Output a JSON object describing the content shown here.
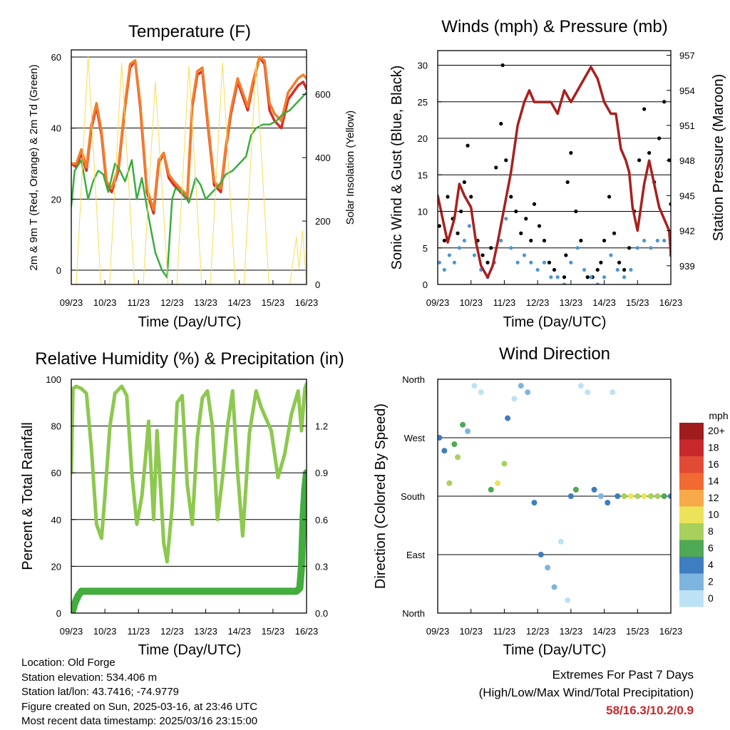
{
  "info": {
    "location": "Location: Old Forge",
    "elevation": "Station elevation: 534.406 m",
    "latlon": "Station lat/lon: 43.7416; -74.9779",
    "created": "Figure created on Sun, 2025-03-16, at 23:46 UTC",
    "recent": "Most recent data timestamp: 2025/03/16 23:15:00"
  },
  "extremes": {
    "heading": "Extremes For Past 7 Days",
    "subheading": "(High/Low/Max Wind/Total Precipitation)",
    "values": "58/16.3/10.2/0.9"
  },
  "chart_data": [
    {
      "type": "line",
      "title": "Temperature (F)",
      "xlabel": "Time (Day/UTC)",
      "ylabel": "2m & 9m T (Red, Orange) & 2m Td (Green)",
      "ylabel_right": "Solar Insolation (Yellow)",
      "xlim": [
        9,
        16
      ],
      "x_ticks": [
        "09/23",
        "10/23",
        "11/23",
        "12/23",
        "13/23",
        "14/23",
        "15/23",
        "16/23"
      ],
      "ylim": [
        -4,
        62
      ],
      "y_ticks": [
        0,
        20,
        40,
        60
      ],
      "ylim_right": [
        0,
        740
      ],
      "y_ticks_right": [
        0,
        200,
        400,
        600
      ],
      "grid": "horizontal",
      "series": [
        {
          "color": "#d62f27",
          "x": [
            9.0,
            9.15,
            9.3,
            9.45,
            9.6,
            9.75,
            9.9,
            10.05,
            10.2,
            10.4,
            10.6,
            10.75,
            10.9,
            11.05,
            11.25,
            11.45,
            11.6,
            11.75,
            11.9,
            12.05,
            12.25,
            12.45,
            12.6,
            12.75,
            12.9,
            13.05,
            13.25,
            13.45,
            13.6,
            13.75,
            13.95,
            14.1,
            14.25,
            14.4,
            14.6,
            14.75,
            14.9,
            15.05,
            15.25,
            15.45,
            15.6,
            15.75,
            15.9,
            16.0
          ],
          "y": [
            30,
            29,
            33,
            28,
            40,
            46,
            38,
            24,
            22,
            28,
            46,
            57,
            59,
            46,
            22,
            16,
            30,
            33,
            26,
            24,
            22,
            20,
            46,
            55,
            56,
            42,
            24,
            22,
            34,
            44,
            53,
            49,
            45,
            52,
            60,
            58,
            45,
            42,
            40,
            48,
            50,
            52,
            53,
            51
          ]
        },
        {
          "color": "#f37e2b",
          "x": [
            9.0,
            9.15,
            9.3,
            9.45,
            9.6,
            9.75,
            9.9,
            10.05,
            10.2,
            10.4,
            10.6,
            10.75,
            10.9,
            11.05,
            11.25,
            11.45,
            11.6,
            11.75,
            11.9,
            12.05,
            12.25,
            12.45,
            12.6,
            12.75,
            12.9,
            13.05,
            13.25,
            13.45,
            13.6,
            13.75,
            13.95,
            14.1,
            14.25,
            14.4,
            14.6,
            14.75,
            14.9,
            15.05,
            15.25,
            15.45,
            15.6,
            15.75,
            15.9,
            16.0
          ],
          "y": [
            30,
            30,
            34,
            29,
            41,
            47,
            39,
            25,
            23,
            29,
            47,
            58,
            59,
            47,
            23,
            17,
            31,
            33,
            27,
            25,
            23,
            21,
            47,
            56,
            57,
            43,
            25,
            23,
            35,
            45,
            54,
            50,
            46,
            53,
            60,
            59,
            47,
            44,
            42,
            50,
            52,
            54,
            55,
            54
          ]
        },
        {
          "color": "#3aad3f",
          "x": [
            9.0,
            9.1,
            9.3,
            9.5,
            9.65,
            9.8,
            9.95,
            10.1,
            10.3,
            10.45,
            10.6,
            10.8,
            10.95,
            11.1,
            11.3,
            11.5,
            11.7,
            11.85,
            12.0,
            12.1,
            12.3,
            12.5,
            12.7,
            12.85,
            13.0,
            13.2,
            13.4,
            13.6,
            13.8,
            14.0,
            14.2,
            14.35,
            14.5,
            14.7,
            14.9,
            15.1,
            15.3,
            15.5,
            15.7,
            15.9,
            16.0
          ],
          "y": [
            18,
            28,
            31,
            20,
            25,
            28,
            27,
            22,
            30,
            28,
            25,
            31,
            20,
            26,
            15,
            5,
            0,
            -2,
            20,
            23,
            22,
            19,
            26,
            24,
            20,
            22,
            24,
            27,
            28,
            30,
            32,
            38,
            40,
            41,
            41,
            42,
            44,
            45,
            47,
            49,
            50
          ]
        },
        {
          "color": "#f5dd55",
          "axis": "right",
          "x": [
            9.15,
            9.5,
            9.88,
            10.14,
            10.5,
            10.88,
            11.14,
            11.5,
            11.88,
            12.14,
            12.5,
            12.88,
            13.14,
            13.5,
            13.88,
            14.14,
            14.5,
            14.88,
            15.14,
            15.5,
            15.7,
            15.78,
            15.88,
            15.93,
            16.0
          ],
          "y": [
            0,
            720,
            0,
            0,
            700,
            0,
            0,
            640,
            0,
            0,
            690,
            0,
            0,
            700,
            0,
            0,
            700,
            0,
            0,
            0,
            150,
            50,
            170,
            100,
            0
          ]
        }
      ]
    },
    {
      "type": "scatter",
      "title": "Winds (mph) & Pressure (mb)",
      "xlabel": "Time (Day/UTC)",
      "ylabel": "Sonic Wind & Gust (Blue, Black)",
      "ylabel_right": "Station Pressure (Maroon)",
      "xlim": [
        9,
        16
      ],
      "x_ticks": [
        "09/23",
        "10/23",
        "11/23",
        "12/23",
        "13/23",
        "14/23",
        "15/23",
        "16/23"
      ],
      "ylim": [
        0,
        32
      ],
      "y_ticks": [
        0,
        5,
        10,
        15,
        20,
        25,
        30
      ],
      "ylim_right": [
        937.4,
        957.4
      ],
      "y_ticks_right": [
        939,
        942,
        945,
        948,
        951,
        954,
        957
      ],
      "grid": "horizontal",
      "series": [
        {
          "color": "#000000",
          "marker": "dot",
          "x": [
            9.05,
            9.2,
            9.3,
            9.45,
            9.6,
            9.7,
            9.8,
            9.9,
            10.0,
            10.2,
            10.35,
            10.5,
            10.6,
            10.75,
            10.9,
            10.95,
            11.05,
            11.2,
            11.35,
            11.5,
            11.65,
            11.8,
            11.9,
            12.05,
            12.2,
            12.35,
            12.5,
            12.8,
            12.85,
            12.9,
            13.0,
            13.15,
            13.3,
            13.5,
            13.65,
            13.8,
            13.9,
            14.0,
            14.15,
            14.3,
            14.45,
            14.6,
            14.75,
            14.9,
            15.05,
            15.2,
            15.35,
            15.5,
            15.65,
            15.8,
            15.95,
            16.0
          ],
          "y": [
            8,
            6,
            12,
            9,
            7,
            10,
            14,
            19,
            12,
            6,
            4,
            3,
            5,
            16,
            22,
            30,
            17,
            12,
            10,
            7,
            9,
            6,
            11,
            8,
            6,
            3,
            2,
            1,
            4,
            14,
            18,
            10,
            6,
            1,
            1,
            2,
            3,
            6,
            12,
            7,
            3,
            2,
            5,
            10,
            17,
            24,
            18,
            14,
            20,
            25,
            17,
            11
          ]
        },
        {
          "color": "#4f96d2",
          "marker": "dot",
          "x": [
            9.05,
            9.2,
            9.35,
            9.5,
            9.65,
            9.8,
            9.95,
            10.1,
            10.3,
            10.5,
            10.7,
            10.9,
            11.05,
            11.2,
            11.4,
            11.6,
            11.8,
            12.0,
            12.2,
            12.4,
            12.6,
            12.8,
            13.0,
            13.2,
            13.4,
            13.6,
            13.8,
            14.0,
            14.2,
            14.4,
            14.6,
            14.8,
            15.0,
            15.2,
            15.4,
            15.6,
            15.8,
            16.0
          ],
          "y": [
            3,
            2,
            4,
            3,
            5,
            6,
            8,
            4,
            2,
            1,
            3,
            6,
            9,
            5,
            3,
            4,
            3,
            2,
            3,
            1,
            1,
            0,
            3,
            5,
            2,
            1,
            0,
            1,
            4,
            2,
            1,
            2,
            5,
            6,
            5,
            6,
            6,
            4
          ]
        },
        {
          "color": "#a8201f",
          "axis": "right",
          "x": [
            9.0,
            9.15,
            9.3,
            9.5,
            9.65,
            9.8,
            10.0,
            10.15,
            10.3,
            10.5,
            10.65,
            10.8,
            11.0,
            11.2,
            11.4,
            11.6,
            11.75,
            11.9,
            12.0,
            12.2,
            12.4,
            12.6,
            12.8,
            13.0,
            13.2,
            13.4,
            13.6,
            13.8,
            14.0,
            14.2,
            14.35,
            14.5,
            14.65,
            14.75,
            14.85,
            15.0,
            15.1,
            15.2,
            15.35,
            15.5,
            15.65,
            15.8,
            15.95,
            16.0
          ],
          "y": [
            945,
            943,
            941,
            943,
            946,
            945,
            944,
            941,
            939,
            938,
            939,
            941,
            944,
            947,
            951,
            953,
            954,
            953,
            953,
            953,
            953,
            952,
            954,
            953,
            954,
            955,
            956,
            955,
            953,
            952,
            952,
            949,
            948,
            947,
            944,
            942,
            944,
            946,
            948,
            946,
            944,
            943,
            942,
            940
          ]
        }
      ]
    },
    {
      "type": "line",
      "title": "Relative Humidity (%) & Precipitation (in)",
      "xlabel": "Time (Day/UTC)",
      "ylabel": "Percent & Total Rainfall",
      "xlim": [
        9,
        16
      ],
      "x_ticks": [
        "09/23",
        "10/23",
        "11/23",
        "12/23",
        "13/23",
        "14/23",
        "15/23",
        "16/23"
      ],
      "ylim": [
        0,
        100
      ],
      "y_ticks": [
        0,
        20,
        40,
        60,
        80,
        100
      ],
      "ylim_right": [
        0,
        1.5
      ],
      "y_ticks_right": [
        "0.0",
        "0.3",
        "0.6",
        "0.9",
        "1.2"
      ],
      "grid": "horizontal",
      "series": [
        {
          "color": "#8dc84f",
          "x": [
            9.0,
            9.05,
            9.15,
            9.3,
            9.45,
            9.6,
            9.75,
            9.9,
            10.0,
            10.15,
            10.3,
            10.5,
            10.65,
            10.8,
            10.95,
            11.1,
            11.2,
            11.3,
            11.45,
            11.55,
            11.65,
            11.75,
            11.85,
            12.0,
            12.15,
            12.3,
            12.45,
            12.6,
            12.75,
            12.9,
            13.05,
            13.2,
            13.35,
            13.5,
            13.65,
            13.8,
            13.95,
            14.1,
            14.3,
            14.5,
            14.65,
            14.8,
            14.95,
            15.15,
            15.35,
            15.55,
            15.75,
            15.85,
            15.95,
            16.0
          ],
          "y": [
            60,
            96,
            97,
            96,
            94,
            70,
            38,
            32,
            50,
            80,
            94,
            97,
            93,
            60,
            38,
            50,
            65,
            82,
            40,
            78,
            55,
            30,
            22,
            45,
            90,
            93,
            55,
            38,
            75,
            92,
            95,
            80,
            40,
            58,
            80,
            95,
            60,
            33,
            77,
            95,
            88,
            83,
            78,
            58,
            68,
            85,
            95,
            78,
            96,
            98
          ]
        },
        {
          "color": "#43ad3e",
          "axis": "right",
          "x": [
            9.0,
            9.05,
            9.1,
            9.2,
            9.3,
            9.6,
            10.0,
            11.0,
            12.0,
            13.0,
            14.0,
            15.0,
            15.7,
            15.8,
            15.85,
            15.9,
            15.95,
            16.0
          ],
          "y": [
            0.0,
            0.02,
            0.06,
            0.11,
            0.14,
            0.14,
            0.14,
            0.14,
            0.14,
            0.14,
            0.14,
            0.14,
            0.14,
            0.16,
            0.3,
            0.62,
            0.8,
            0.9
          ]
        }
      ]
    },
    {
      "type": "scatter",
      "title": "Wind Direction",
      "xlabel": "Time (Day/UTC)",
      "ylabel": "Direction (Colored By Speed)",
      "xlim": [
        9,
        16
      ],
      "x_ticks": [
        "09/23",
        "10/23",
        "11/23",
        "12/23",
        "13/23",
        "14/23",
        "15/23",
        "16/23"
      ],
      "y_ticks": [
        "North",
        "East",
        "South",
        "West",
        "North"
      ],
      "grid": "horizontal",
      "legend": {
        "title": "mph",
        "labels": [
          "20+",
          "18",
          "16",
          "14",
          "12",
          "10",
          "8",
          "6",
          "4",
          "2",
          "0"
        ],
        "colors": [
          "#9e1c1e",
          "#c8282c",
          "#e14a34",
          "#f06a31",
          "#f8a94a",
          "#ece35a",
          "#a8d05d",
          "#4fa854",
          "#3e7dbf",
          "#7db5df",
          "#bde2f5"
        ]
      },
      "series": [
        {
          "x": [
            9.05,
            9.2,
            9.35,
            9.5,
            9.6,
            9.75,
            9.9,
            10.1,
            10.3,
            10.6,
            10.8,
            11.0,
            11.1,
            11.3,
            11.5,
            11.7,
            11.9,
            12.1,
            12.3,
            12.5,
            12.7,
            12.9,
            13.0,
            13.15,
            13.3,
            13.5,
            13.7,
            13.9,
            14.1,
            14.25,
            14.4,
            14.6,
            14.8,
            15.0,
            15.2,
            15.4,
            15.6,
            15.8,
            16.0
          ],
          "y": [
            270,
            250,
            200,
            260,
            240,
            290,
            280,
            350,
            340,
            190,
            200,
            230,
            300,
            330,
            350,
            340,
            170,
            90,
            70,
            40,
            110,
            20,
            180,
            190,
            350,
            340,
            190,
            180,
            170,
            340,
            180,
            180,
            180,
            180,
            180,
            180,
            180,
            180,
            180
          ],
          "speed": [
            4,
            4,
            8,
            6,
            8,
            6,
            2,
            0,
            0,
            6,
            10,
            8,
            4,
            0,
            2,
            2,
            4,
            4,
            2,
            2,
            0,
            0,
            4,
            6,
            0,
            0,
            4,
            2,
            4,
            0,
            4,
            8,
            10,
            8,
            10,
            8,
            8,
            6,
            4
          ]
        }
      ]
    }
  ]
}
